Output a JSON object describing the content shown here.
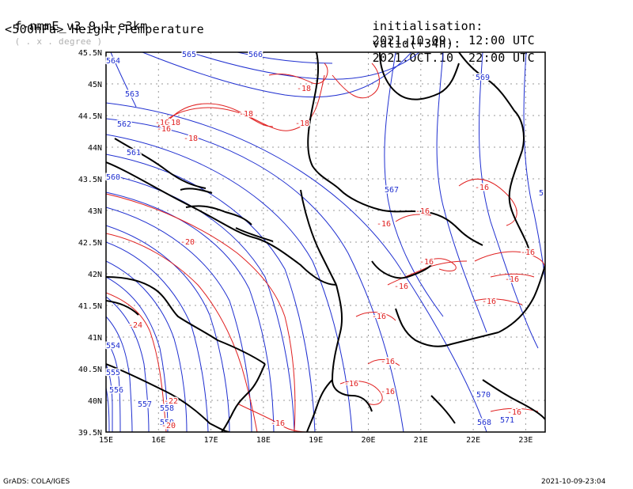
{
  "header": {
    "model": "f-nmmE_v3.9.1-e3km",
    "model_sub": "( . x . degree )",
    "level_title": "<500hPa> Height,Temperature",
    "init_label": "initialisation:",
    "init_value": "2021.10.09.  12:00 UTC",
    "valid_label": "valid(+34h):",
    "valid_value": "2021.OCT.10  22:00 UTC"
  },
  "axes": {
    "lon_ticks": [
      "15E",
      "16E",
      "17E",
      "18E",
      "19E",
      "20E",
      "21E",
      "22E",
      "23E"
    ],
    "lat_ticks": [
      "45.5N",
      "45N",
      "44.5N",
      "44N",
      "43.5N",
      "43N",
      "42.5N",
      "42N",
      "41.5N",
      "41N",
      "40.5N",
      "40N",
      "39.5N"
    ]
  },
  "contours": {
    "height_color": "#1f2fd0",
    "temp_color": "#e02020",
    "coast_color": "#000000",
    "grid_color": "#9a9a9a",
    "height_labels": [
      {
        "text": "564"
      },
      {
        "text": "565"
      },
      {
        "text": "566"
      },
      {
        "text": "563"
      },
      {
        "text": "562"
      },
      {
        "text": "561"
      },
      {
        "text": "560"
      },
      {
        "text": "567"
      },
      {
        "text": "569"
      },
      {
        "text": "554"
      },
      {
        "text": "555"
      },
      {
        "text": "556"
      },
      {
        "text": "557"
      },
      {
        "text": "558"
      },
      {
        "text": "559"
      },
      {
        "text": "570"
      },
      {
        "text": "571"
      },
      {
        "text": "568"
      },
      {
        "text": "5"
      }
    ],
    "temp_labels": [
      {
        "text": "-18"
      },
      {
        "text": "-18"
      },
      {
        "text": "-18"
      },
      {
        "text": "-18"
      },
      {
        "text": "-16"
      },
      {
        "text": "-18"
      },
      {
        "text": "-16"
      },
      {
        "text": "-16"
      },
      {
        "text": "-16"
      },
      {
        "text": "-16"
      },
      {
        "text": "-16"
      },
      {
        "text": "-16"
      },
      {
        "text": "-16"
      },
      {
        "text": "-16"
      },
      {
        "text": "-16"
      },
      {
        "text": "-16"
      },
      {
        "text": "-16"
      },
      {
        "text": "-16"
      },
      {
        "text": "-16"
      },
      {
        "text": "-20"
      },
      {
        "text": "-24"
      },
      {
        "text": "-22"
      },
      {
        "text": "-20"
      },
      {
        "text": "-16"
      },
      {
        "text": "-16"
      }
    ]
  },
  "footer": {
    "left": "GrADS: COLA/IGES",
    "right": "2021-10-09-23:04"
  }
}
